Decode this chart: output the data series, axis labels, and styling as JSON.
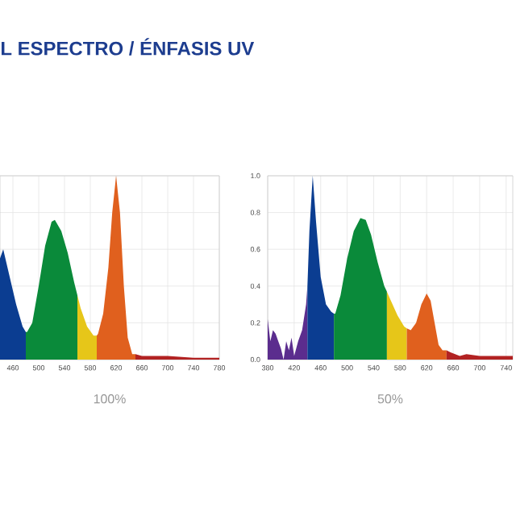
{
  "chart_data": [
    {
      "type": "area",
      "title": "L ESPECTRO / ÉNFASIS UV",
      "xlabel": "100%",
      "xlim": [
        440,
        780
      ],
      "xticks": [
        460,
        500,
        540,
        580,
        620,
        660,
        700,
        740,
        780
      ],
      "ylim": [
        0,
        1
      ],
      "yticks": [
        0,
        0.2,
        0.4,
        0.6,
        0.8,
        1.0
      ],
      "tick_labels": "x",
      "grid": true,
      "series": [
        {
          "color": "#0b3d91",
          "x": [
            440,
            445,
            455,
            465,
            475,
            480
          ],
          "values": [
            0.55,
            0.6,
            0.45,
            0.3,
            0.18,
            0.15
          ]
        },
        {
          "color": "#0a8a3a",
          "x": [
            480,
            482,
            490,
            500,
            510,
            520,
            525,
            535,
            545,
            555,
            560
          ],
          "values": [
            0.15,
            0.15,
            0.2,
            0.4,
            0.62,
            0.75,
            0.76,
            0.7,
            0.58,
            0.42,
            0.35
          ]
        },
        {
          "color": "#e6c619",
          "x": [
            560,
            565,
            575,
            585,
            590
          ],
          "values": [
            0.35,
            0.28,
            0.18,
            0.13,
            0.13
          ]
        },
        {
          "color": "#e0601e",
          "x": [
            590,
            592,
            600,
            608,
            614,
            620,
            626,
            632,
            638,
            645,
            650
          ],
          "values": [
            0.13,
            0.14,
            0.25,
            0.5,
            0.8,
            1.0,
            0.8,
            0.4,
            0.12,
            0.03,
            0.03
          ]
        },
        {
          "color": "#b22222",
          "x": [
            650,
            660,
            700,
            740,
            780
          ],
          "values": [
            0.03,
            0.02,
            0.02,
            0.01,
            0.01
          ]
        }
      ]
    },
    {
      "type": "area",
      "xlabel": "50%",
      "xlim": [
        380,
        750
      ],
      "xticks": [
        380,
        420,
        460,
        500,
        540,
        580,
        620,
        660,
        700,
        740
      ],
      "ylim": [
        0,
        1
      ],
      "yticks": [
        {
          "value": 0,
          "label": "0.0"
        },
        0.2,
        0.4,
        0.6,
        0.8,
        {
          "value": 1,
          "label": "1.0"
        }
      ],
      "grid": true,
      "series": [
        {
          "color": "#5b2d8e",
          "x": [
            380,
            384,
            388,
            392,
            396,
            400,
            404,
            408,
            412,
            416,
            420,
            426,
            432,
            438,
            440
          ],
          "values": [
            0.22,
            0.1,
            0.16,
            0.14,
            0.1,
            0.06,
            0.0,
            0.1,
            0.05,
            0.12,
            0.02,
            0.1,
            0.16,
            0.3,
            0.4
          ]
        },
        {
          "color": "#0b3d91",
          "x": [
            440,
            443,
            448,
            453,
            460,
            468,
            476,
            480
          ],
          "values": [
            0.4,
            0.7,
            1.0,
            0.75,
            0.45,
            0.3,
            0.26,
            0.25
          ]
        },
        {
          "color": "#0a8a3a",
          "x": [
            480,
            482,
            490,
            500,
            510,
            520,
            528,
            536,
            546,
            556,
            560
          ],
          "values": [
            0.25,
            0.25,
            0.35,
            0.55,
            0.7,
            0.77,
            0.76,
            0.68,
            0.53,
            0.4,
            0.37
          ]
        },
        {
          "color": "#e6c619",
          "x": [
            560,
            566,
            576,
            586,
            590
          ],
          "values": [
            0.37,
            0.32,
            0.24,
            0.18,
            0.17
          ]
        },
        {
          "color": "#e0601e",
          "x": [
            590,
            596,
            604,
            612,
            620,
            626,
            632,
            638,
            644,
            650
          ],
          "values": [
            0.17,
            0.16,
            0.2,
            0.3,
            0.36,
            0.32,
            0.2,
            0.08,
            0.05,
            0.05
          ]
        },
        {
          "color": "#b22222",
          "x": [
            650,
            656,
            670,
            680,
            700,
            720,
            740,
            750
          ],
          "values": [
            0.05,
            0.04,
            0.02,
            0.03,
            0.02,
            0.02,
            0.02,
            0.02
          ]
        }
      ]
    }
  ]
}
